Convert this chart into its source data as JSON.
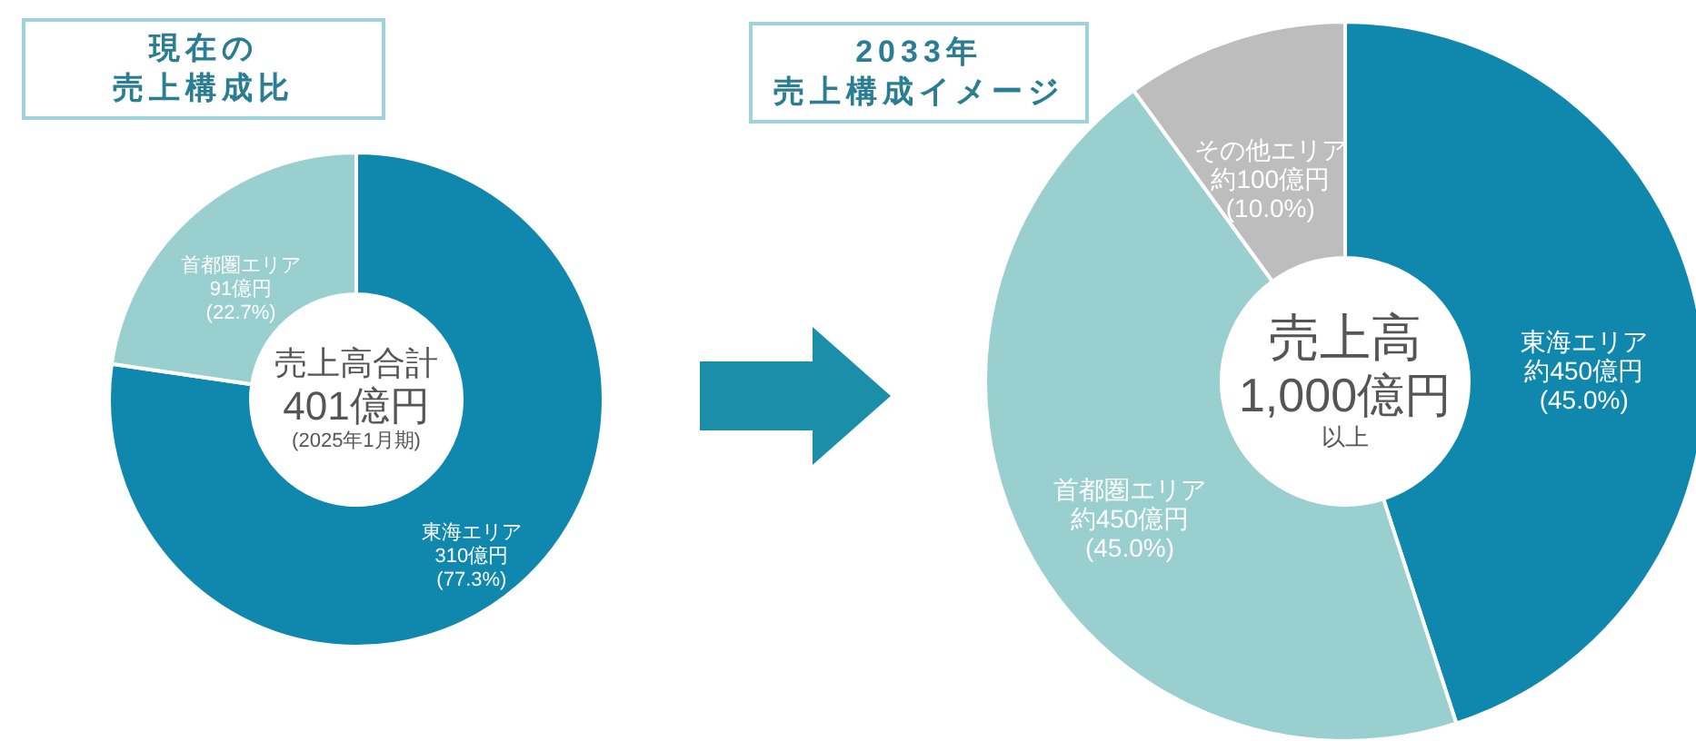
{
  "chart_data": [
    {
      "type": "donut",
      "title": "現在の売上構成比",
      "categories": [
        "東海エリア",
        "首都圏エリア"
      ],
      "values": [
        310,
        91
      ],
      "colors": [
        "#1088ad",
        "#99cfcf"
      ],
      "value_labels": [
        "310億円\n(77.3%)",
        "91億円\n(22.7%)"
      ],
      "annotations": [
        "売上高合計",
        "401億円",
        "(2025年1月期)"
      ]
    },
    {
      "type": "donut",
      "title": "2033年売上構成イメージ",
      "categories": [
        "東海エリア",
        "首都圏エリア",
        "その他エリア"
      ],
      "values": [
        450,
        450,
        100
      ],
      "colors": [
        "#1088ad",
        "#99cfcf",
        "#bdbdbd"
      ],
      "value_labels": [
        "約450億円\n(45.0%)",
        "約450億円\n(45.0%)",
        "約100億円\n(10.0%)"
      ],
      "annotations": [
        "売上高",
        "1,000億円",
        "以上"
      ]
    }
  ]
}
